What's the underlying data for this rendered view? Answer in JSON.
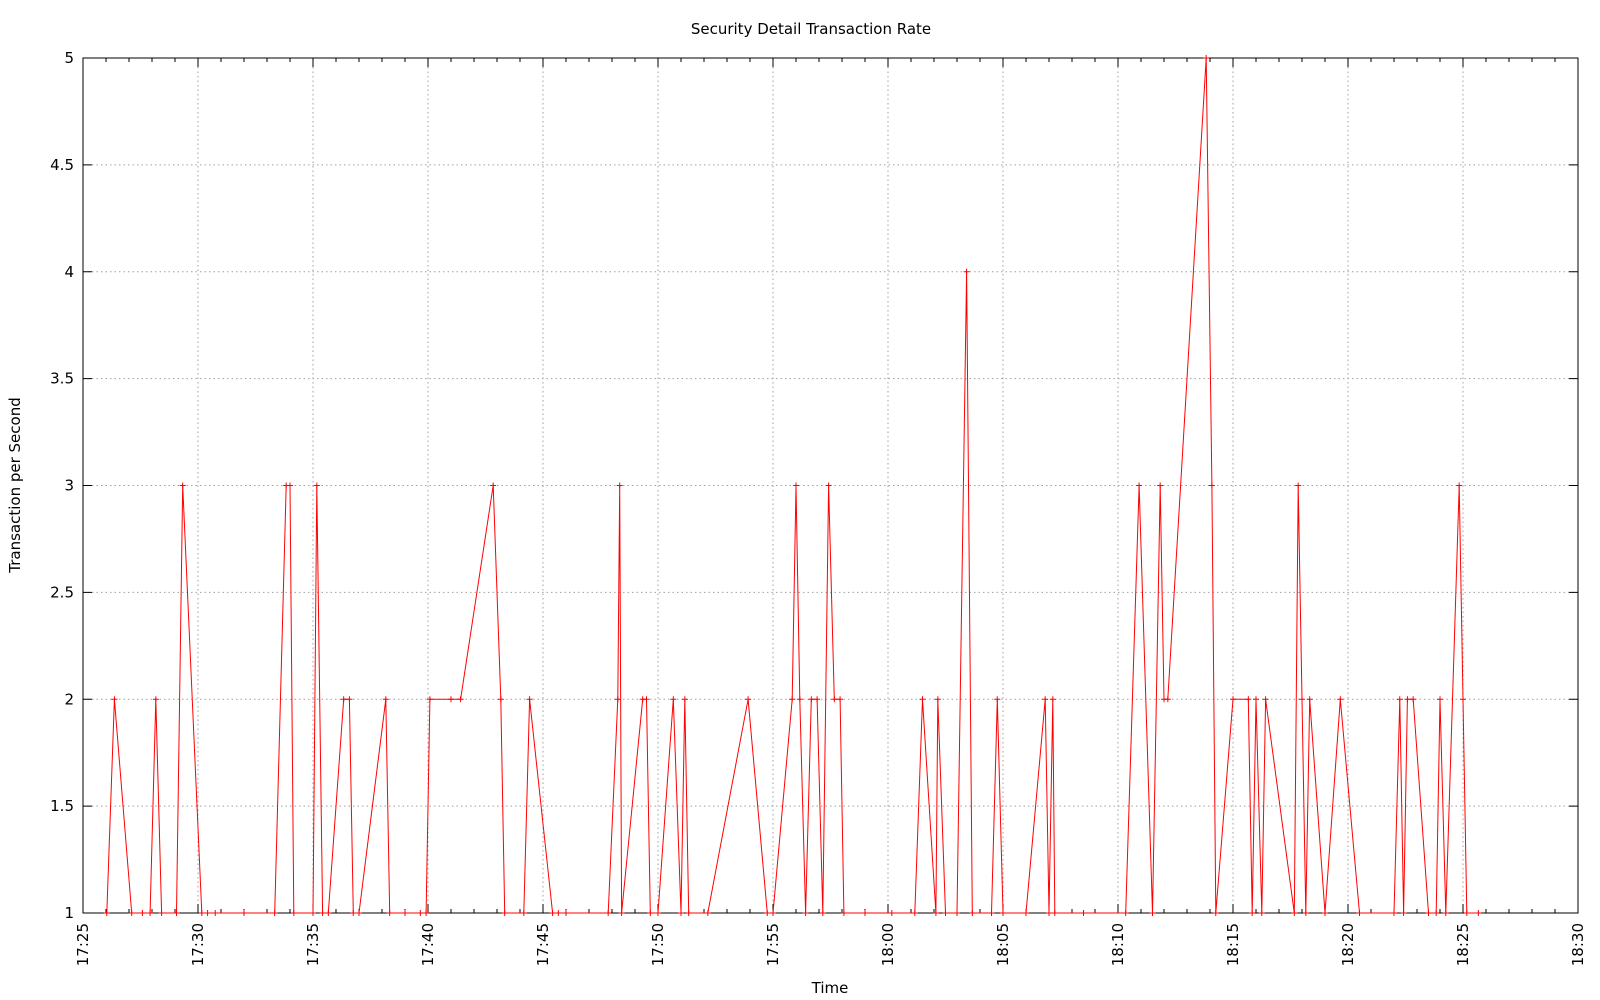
{
  "chart_data": {
    "type": "line",
    "title": "Security Detail Transaction Rate",
    "xlabel": "Time",
    "ylabel": "Transaction per Second",
    "xlim": [
      "17:25",
      "18:30"
    ],
    "ylim": [
      1,
      5
    ],
    "grid": true,
    "line_color": "#ff0000",
    "x_ticks": [
      "17:25",
      "17:30",
      "17:35",
      "17:40",
      "17:45",
      "17:50",
      "17:55",
      "18:00",
      "18:05",
      "18:10",
      "18:15",
      "18:20",
      "18:25",
      "18:30"
    ],
    "y_ticks": [
      "1",
      "1.5",
      "2",
      "2.5",
      "3",
      "3.5",
      "4",
      "4.5",
      "5"
    ],
    "series": [
      {
        "x": [
          "17:26:02",
          "17:26:22",
          "17:27:07",
          "17:27:35",
          "17:27:55",
          "17:28:10",
          "17:28:25",
          "17:29:04",
          "17:29:20",
          "17:30:10",
          "17:30:25",
          "17:30:45",
          "17:32:00",
          "17:33:20",
          "17:33:50",
          "17:34:00",
          "17:34:10",
          "17:35:00",
          "17:35:10",
          "17:35:25",
          "17:35:40",
          "17:36:20",
          "17:36:35",
          "17:36:45",
          "17:37:00",
          "17:38:10",
          "17:38:20",
          "17:39:00",
          "17:39:40",
          "17:39:55",
          "17:40:05",
          "17:41:00",
          "17:41:25",
          "17:42:50",
          "17:43:10",
          "17:43:20",
          "17:44:10",
          "17:44:25",
          "17:45:25",
          "17:45:40",
          "17:46:00",
          "17:47:50",
          "17:48:15",
          "17:48:20",
          "17:48:25",
          "17:49:20",
          "17:49:30",
          "17:49:40",
          "17:50:00",
          "17:50:40",
          "17:51:00",
          "17:51:10",
          "17:51:20",
          "17:52:10",
          "17:53:55",
          "17:54:45",
          "17:55:00",
          "17:55:50",
          "17:56:00",
          "17:56:10",
          "17:56:25",
          "17:56:40",
          "17:56:55",
          "17:57:10",
          "17:57:25",
          "17:57:40",
          "17:57:55",
          "17:58:05",
          "17:59:00",
          "18:00:10",
          "18:01:10",
          "18:01:30",
          "18:02:05",
          "18:02:10",
          "18:02:30",
          "18:03:00",
          "18:03:25",
          "18:03:40",
          "18:04:30",
          "18:04:45",
          "18:05:00",
          "18:06:00",
          "18:06:50",
          "18:07:00",
          "18:07:10",
          "18:07:15",
          "18:08:30",
          "18:10:20",
          "18:10:55",
          "18:11:30",
          "18:11:50",
          "18:12:00",
          "18:12:10",
          "18:13:50",
          "18:14:05",
          "18:14:15",
          "18:15:00",
          "18:15:40",
          "18:15:50",
          "18:16:00",
          "18:16:15",
          "18:16:25",
          "18:17:40",
          "18:17:50",
          "18:18:00",
          "18:18:10",
          "18:18:20",
          "18:19:00",
          "18:19:40",
          "18:20:30",
          "18:22:00",
          "18:22:15",
          "18:22:25",
          "18:22:35",
          "18:22:50",
          "18:23:30",
          "18:23:50",
          "18:24:00",
          "18:24:15",
          "18:24:50",
          "18:25:00",
          "18:25:10",
          "18:25:40"
        ],
        "y": [
          1,
          2,
          1,
          1,
          1,
          2,
          1,
          1,
          3,
          1,
          1,
          1,
          1,
          1,
          3,
          3,
          1,
          1,
          3,
          1,
          1,
          2,
          2,
          1,
          1,
          2,
          1,
          1,
          1,
          1,
          2,
          2,
          2,
          3,
          2,
          1,
          1,
          2,
          1,
          1,
          1,
          1,
          2,
          3,
          1,
          2,
          2,
          1,
          1,
          2,
          1,
          2,
          1,
          1,
          2,
          1,
          1,
          2,
          3,
          2,
          1,
          2,
          2,
          1,
          3,
          2,
          2,
          1,
          1,
          1,
          1,
          2,
          1,
          2,
          1,
          1,
          4,
          1,
          1,
          2,
          1,
          1,
          2,
          1,
          2,
          1,
          1,
          1,
          3,
          1,
          3,
          2,
          2,
          5,
          3,
          1,
          2,
          2,
          1,
          2,
          1,
          2,
          1,
          3,
          2,
          1,
          2,
          1,
          2,
          1,
          1,
          2,
          1,
          2,
          2,
          1,
          1,
          2,
          1,
          3,
          2,
          1,
          1
        ]
      }
    ]
  }
}
